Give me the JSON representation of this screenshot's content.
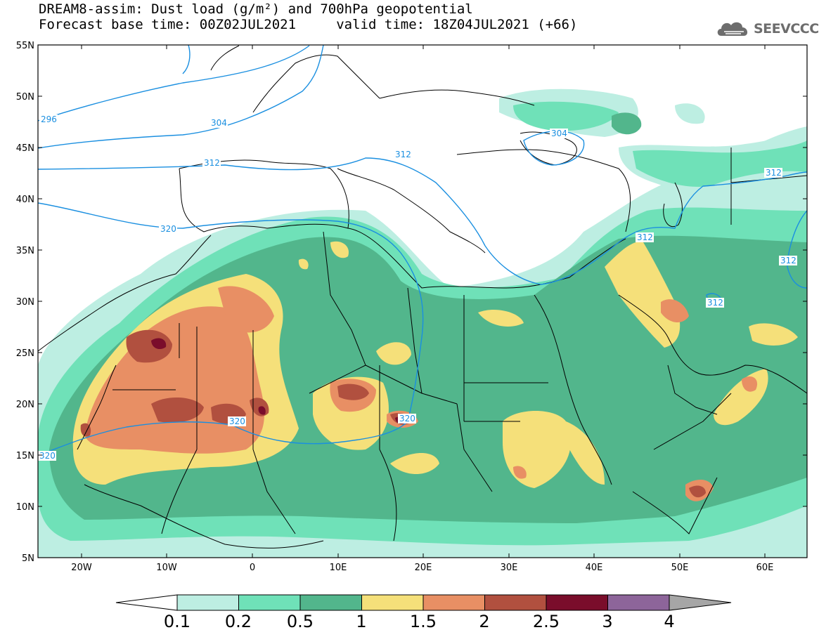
{
  "title": {
    "line1": "DREAM8-assim: Dust load (g/m²) and 700hPa geopotential",
    "line2": "Forecast base time: 00Z02JUL2021     valid time: 18Z04JUL2021 (+66)"
  },
  "logo": {
    "text": "SEEVCCC",
    "icon": "cloud-logo-icon"
  },
  "map": {
    "lat_ticks": [
      "55N",
      "50N",
      "45N",
      "40N",
      "35N",
      "30N",
      "25N",
      "20N",
      "15N",
      "10N",
      "5N"
    ],
    "lon_ticks": [
      "20W",
      "10W",
      "0",
      "10E",
      "20E",
      "30E",
      "40E",
      "50E",
      "60E"
    ],
    "lat_range": [
      5,
      55
    ],
    "lon_range": [
      -25,
      65
    ],
    "isoline_labels": [
      "296",
      "304",
      "312",
      "312",
      "320",
      "320",
      "320",
      "320",
      "304",
      "312",
      "312",
      "312",
      "312"
    ],
    "isoline_color": "#1a8fe0"
  },
  "colorbar": {
    "labels": [
      "0.1",
      "0.2",
      "0.5",
      "1",
      "1.5",
      "2",
      "2.5",
      "3",
      "4"
    ],
    "colors": [
      "#bdeee2",
      "#6fe1b8",
      "#52b68c",
      "#f5e07a",
      "#e88f64",
      "#b1503f",
      "#7a0d2b",
      "#8d659a"
    ],
    "under_color": "#ffffff",
    "over_color": "#a6a6a6"
  }
}
